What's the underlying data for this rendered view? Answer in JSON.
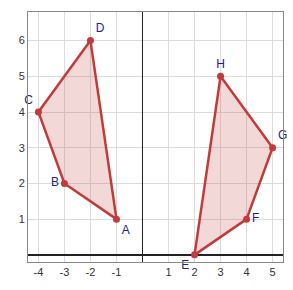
{
  "chart_data": {
    "type": "scatter",
    "series": [
      {
        "labels": [
          "A",
          "B",
          "C",
          "D"
        ],
        "x": [
          -1,
          -3,
          -4,
          -2
        ],
        "values": [
          1,
          2,
          4,
          6
        ],
        "color": "#c23b3b"
      },
      {
        "labels": [
          "E",
          "F",
          "G",
          "H"
        ],
        "x": [
          2,
          4,
          5,
          3
        ],
        "values": [
          0,
          1,
          3,
          5
        ],
        "color": "#c23b3b"
      }
    ],
    "xlim": [
      -4.4,
      5.4
    ],
    "xticks": [
      -4,
      -3,
      -2,
      -1,
      1,
      2,
      3,
      4,
      5
    ],
    "ylim": [
      -0.2,
      6.8
    ],
    "yticks": [
      1,
      2,
      3,
      4,
      5,
      6
    ],
    "grid": true
  }
}
